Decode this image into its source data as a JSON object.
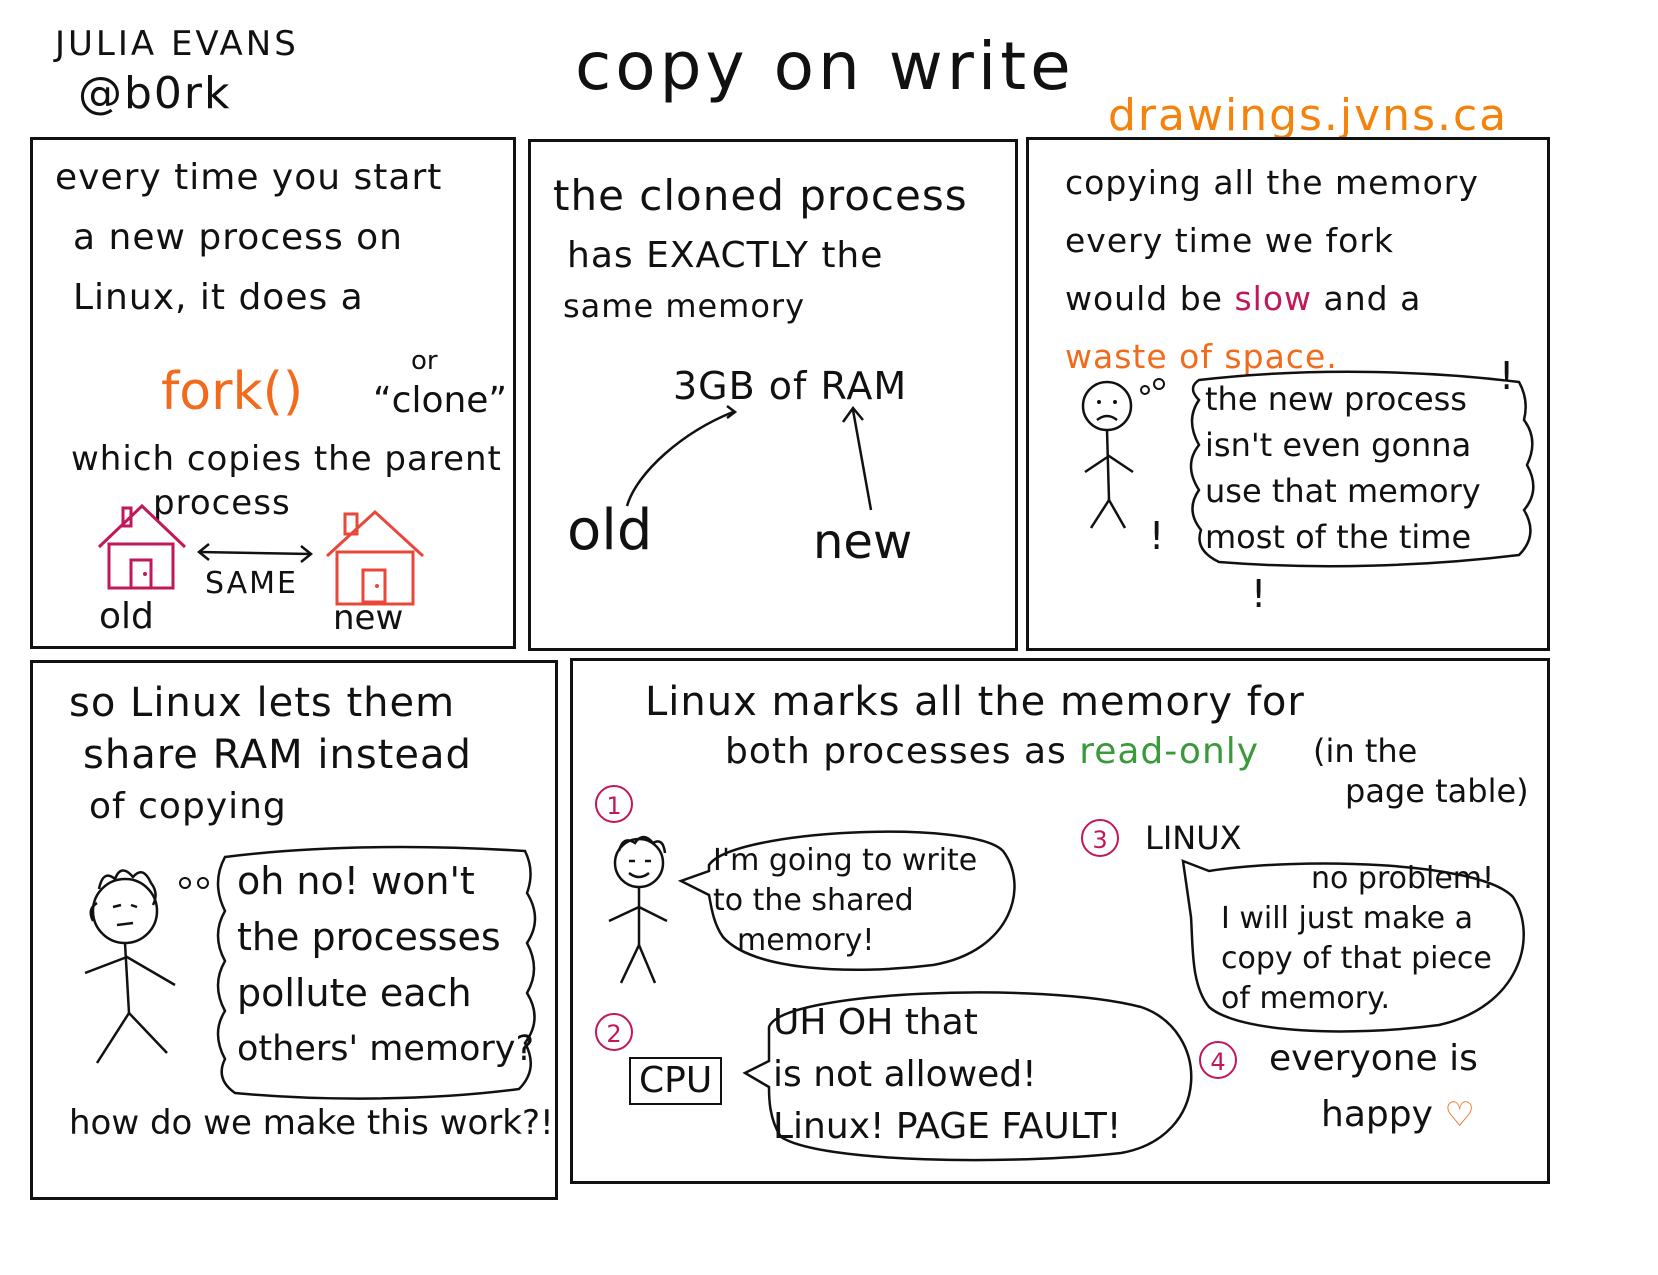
{
  "colors": {
    "ink": "#111111",
    "orange": "#f26b1d",
    "url_orange": "#f5820b",
    "magenta": "#c2185b",
    "green": "#3a9a3a",
    "heart": "#f26b1d"
  },
  "header": {
    "author_name": "JULIA EVANS",
    "author_handle": "@b0rk",
    "title": "copy on write",
    "url": "drawings.jvns.ca"
  },
  "panel1": {
    "lines": [
      "every time you start",
      "a new process on",
      "Linux, it does a"
    ],
    "fork": "fork()",
    "or": "or",
    "clone": "“clone”",
    "which_lines": [
      "which copies the parent",
      "process"
    ],
    "same": "SAME",
    "old": "old",
    "new": "new"
  },
  "panel2": {
    "lines": [
      "the cloned process",
      "has EXACTLY the",
      "same memory"
    ],
    "ram": "3GB of RAM",
    "old": "old",
    "new": "new"
  },
  "panel3": {
    "lines": [
      "copying all the memory",
      "every time we fork"
    ],
    "line3_start": "would be ",
    "slow": "slow",
    "line3_end": " and a",
    "waste": "waste of space.",
    "bubble": [
      "the new process",
      "isn't even gonna",
      "use that memory",
      "most of the time"
    ],
    "bubble_use": "use",
    "bang": "!"
  },
  "panel4": {
    "lines": [
      "so Linux lets them",
      "share RAM instead",
      "of copying"
    ],
    "bubble": [
      "oh no! won't",
      "the processes",
      "pollute each",
      "others' memory?"
    ],
    "footer": "how do we make this work?!"
  },
  "panel5": {
    "intro_line1": "Linux marks all the memory for",
    "intro_line2_start": "both processes as ",
    "read_only": "read-only",
    "paren": [
      "(in the",
      "page table)"
    ],
    "step1": {
      "num": "1",
      "speech": [
        "I'm going to write",
        "to the shared",
        "memory!"
      ]
    },
    "step2": {
      "num": "2",
      "cpu": "CPU",
      "speech": [
        "UH OH that",
        "is not allowed!",
        "Linux! PAGE FAULT!"
      ]
    },
    "step3": {
      "num": "3",
      "label": "LINUX",
      "speech": [
        "no problem!",
        "I will just make a",
        "copy of that piece",
        "of memory."
      ]
    },
    "step4": {
      "num": "4",
      "text": [
        "everyone is",
        "happy"
      ],
      "heart": "♡"
    }
  }
}
